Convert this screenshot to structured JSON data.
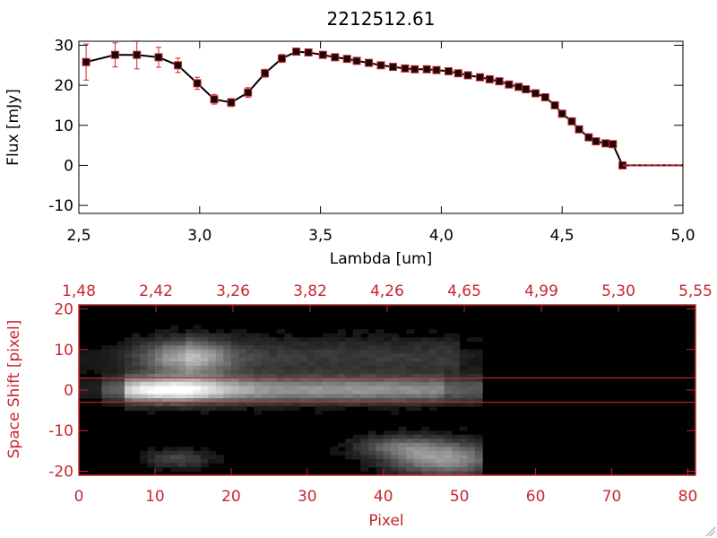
{
  "chart_data": [
    {
      "type": "line",
      "title": "2212512.61",
      "xlabel": "Lambda [um]",
      "ylabel": "Flux [mJy]",
      "xlim": [
        2.5,
        5.0
      ],
      "ylim": [
        -12,
        31
      ],
      "x_ticks": [
        "2.5",
        "3.0",
        "3.5",
        "4.0",
        "4.5",
        "5.0"
      ],
      "y_ticks": [
        "-10",
        "0",
        "10",
        "20",
        "30"
      ],
      "series": [
        {
          "x": [
            2.53,
            2.65,
            2.74,
            2.83,
            2.91,
            2.99,
            3.06,
            3.13,
            3.2,
            3.27,
            3.34,
            3.4,
            3.45,
            3.51,
            3.56,
            3.61,
            3.65,
            3.7,
            3.75,
            3.8,
            3.85,
            3.89,
            3.94,
            3.98,
            4.03,
            4.07,
            4.11,
            4.16,
            4.2,
            4.24,
            4.28,
            4.32,
            4.35,
            4.39,
            4.43,
            4.47,
            4.5,
            4.54,
            4.57,
            4.61,
            4.64,
            4.68,
            4.71,
            4.75
          ],
          "y": [
            25.8,
            27.6,
            27.6,
            27.0,
            25.0,
            20.5,
            16.5,
            15.7,
            18.2,
            23.0,
            26.7,
            28.4,
            28.2,
            27.6,
            27.0,
            26.6,
            26.1,
            25.6,
            25.0,
            24.6,
            24.2,
            24.0,
            24.0,
            23.8,
            23.5,
            23.0,
            22.5,
            22.0,
            21.5,
            21.0,
            20.2,
            19.6,
            19.0,
            18.0,
            17.0,
            15.0,
            12.9,
            11.0,
            9.0,
            7.0,
            6.0,
            5.5,
            5.3,
            0.0
          ],
          "y_err": [
            4.5,
            3.0,
            3.5,
            2.5,
            1.8,
            1.5,
            1.2,
            1.0,
            1.2,
            1.0,
            1.0,
            0.8,
            0.7,
            0.6,
            0.6,
            0.5,
            0.5,
            0.5,
            0.5,
            0.5,
            0.5,
            0.5,
            0.5,
            0.5,
            0.5,
            0.5,
            0.5,
            0.5,
            0.5,
            0.5,
            0.5,
            0.5,
            0.5,
            0.5,
            0.5,
            0.5,
            0.5,
            0.5,
            0.5,
            0.5,
            0.5,
            0.5,
            0.5,
            0.5
          ],
          "flat_tail": {
            "x_start": 4.75,
            "x_end": 5.0,
            "y": 0.0
          }
        }
      ],
      "line_color": "#000000",
      "marker_color": "#c8262e",
      "error_color": "#c8262e"
    },
    {
      "type": "heatmap",
      "xlabel": "Pixel",
      "ylabel": "Space Shift [pixel]",
      "xlim": [
        0,
        81
      ],
      "ylim": [
        -21,
        21
      ],
      "x_ticks": [
        "0",
        "10",
        "20",
        "30",
        "40",
        "50",
        "60",
        "70",
        "80"
      ],
      "y_ticks": [
        "-20",
        "-10",
        "0",
        "10",
        "20"
      ],
      "top_ticks": [
        "1.48",
        "2.42",
        "3.26",
        "3.82",
        "4.26",
        "4.65",
        "4.99",
        "5.30",
        "5.55"
      ],
      "aperture_lines": [
        3,
        -3
      ],
      "signal_cutoff_pixel": 53,
      "axis_color": "#c8262e"
    }
  ]
}
